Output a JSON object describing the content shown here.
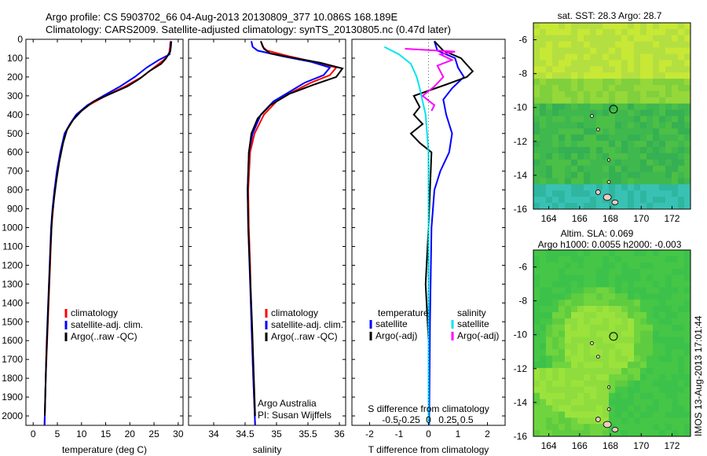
{
  "header": {
    "line1": "Argo profile: CS 5903702_66 04-Aug-2013 20130809_377 10.086S 168.189E",
    "line2": "Climatology: CARS2009. Satellite-adjusted climatology: synTS_20130805.nc (0.47d later)"
  },
  "colors": {
    "climatology": "#ff0000",
    "satellite": "#0000ff",
    "argo": "#000000",
    "sat_salinity": "#00e5ee",
    "argo_salinity": "#ff00ff"
  },
  "chart_data": [
    {
      "type": "line",
      "id": "temperature",
      "xlabel": "temperature (deg C)",
      "ylabel": "",
      "xlim": [
        -1.5,
        31
      ],
      "ylim": [
        0,
        2050
      ],
      "y_reversed": true,
      "xticks": [
        0,
        5,
        10,
        15,
        20,
        25,
        30
      ],
      "yticks": [
        0,
        100,
        200,
        300,
        400,
        500,
        600,
        700,
        800,
        900,
        1000,
        1100,
        1200,
        1300,
        1400,
        1500,
        1600,
        1700,
        1800,
        1900,
        2000
      ],
      "legend": [
        "climatology",
        "satellite-adj. clim.",
        "Argo(..raw -QC)"
      ],
      "series": [
        {
          "name": "climatology",
          "color": "#ff0000",
          "points": [
            [
              28.4,
              10
            ],
            [
              28.3,
              40
            ],
            [
              28.1,
              80
            ],
            [
              27.0,
              110
            ],
            [
              25.0,
              150
            ],
            [
              22.5,
              200
            ],
            [
              19.0,
              250
            ],
            [
              15.0,
              300
            ],
            [
              11.5,
              350
            ],
            [
              9.0,
              400
            ],
            [
              7.7,
              450
            ],
            [
              6.6,
              500
            ],
            [
              5.7,
              600
            ],
            [
              5.0,
              700
            ],
            [
              4.5,
              800
            ],
            [
              4.1,
              900
            ],
            [
              3.8,
              1000
            ],
            [
              3.5,
              1200
            ],
            [
              3.2,
              1400
            ],
            [
              2.9,
              1600
            ],
            [
              2.6,
              1800
            ],
            [
              2.4,
              2000
            ],
            [
              2.35,
              2050
            ]
          ]
        },
        {
          "name": "satellite-adj. clim.",
          "color": "#0000ff",
          "points": [
            [
              28.6,
              10
            ],
            [
              28.5,
              40
            ],
            [
              28.2,
              80
            ],
            [
              26.0,
              110
            ],
            [
              23.5,
              150
            ],
            [
              21.0,
              200
            ],
            [
              18.0,
              250
            ],
            [
              14.5,
              300
            ],
            [
              11.2,
              350
            ],
            [
              8.9,
              400
            ],
            [
              7.6,
              450
            ],
            [
              6.5,
              500
            ],
            [
              5.6,
              600
            ],
            [
              4.9,
              700
            ],
            [
              4.4,
              800
            ],
            [
              4.0,
              900
            ],
            [
              3.7,
              1000
            ],
            [
              3.4,
              1200
            ],
            [
              3.1,
              1400
            ],
            [
              2.8,
              1600
            ],
            [
              2.6,
              1800
            ],
            [
              2.4,
              2000
            ],
            [
              2.35,
              2050
            ]
          ]
        },
        {
          "name": "Argo(..raw -QC)",
          "color": "#000000",
          "points": [
            [
              28.5,
              10
            ],
            [
              28.4,
              60
            ],
            [
              27.5,
              100
            ],
            [
              26.5,
              130
            ],
            [
              24.0,
              170
            ],
            [
              22.0,
              210
            ],
            [
              19.5,
              250
            ],
            [
              15.5,
              295
            ],
            [
              12.5,
              330
            ],
            [
              10.0,
              380
            ],
            [
              8.2,
              430
            ],
            [
              7.0,
              480
            ],
            [
              6.2,
              550
            ],
            [
              5.4,
              650
            ],
            [
              4.8,
              750
            ],
            [
              4.3,
              850
            ],
            [
              3.9,
              950
            ],
            [
              3.6,
              1100
            ],
            [
              3.3,
              1300
            ],
            [
              3.0,
              1500
            ],
            [
              2.7,
              1700
            ],
            [
              2.5,
              1900
            ],
            [
              2.4,
              2000
            ]
          ]
        }
      ]
    },
    {
      "type": "line",
      "id": "salinity",
      "xlabel": "salinity",
      "xlim": [
        33.6,
        36.1
      ],
      "ylim": [
        0,
        2050
      ],
      "y_reversed": true,
      "xticks": [
        34,
        34.5,
        35,
        35.5,
        36
      ],
      "legend": [
        "climatology",
        "satellite-adj. clim.",
        "Argo(..raw -QC)"
      ],
      "annotation": [
        "Argo Australia",
        "PI: Susan Wijffels"
      ],
      "series": [
        {
          "name": "climatology",
          "color": "#ff0000",
          "points": [
            [
              34.75,
              10
            ],
            [
              34.78,
              40
            ],
            [
              34.85,
              60
            ],
            [
              35.2,
              90
            ],
            [
              35.6,
              120
            ],
            [
              35.95,
              150
            ],
            [
              35.85,
              190
            ],
            [
              35.55,
              230
            ],
            [
              35.25,
              280
            ],
            [
              35.0,
              330
            ],
            [
              34.8,
              400
            ],
            [
              34.65,
              500
            ],
            [
              34.58,
              600
            ],
            [
              34.55,
              800
            ],
            [
              34.56,
              1000
            ],
            [
              34.58,
              1200
            ],
            [
              34.6,
              1500
            ],
            [
              34.63,
              1800
            ],
            [
              34.66,
              2050
            ]
          ]
        },
        {
          "name": "satellite-adj. clim.",
          "color": "#0000ff",
          "points": [
            [
              34.6,
              10
            ],
            [
              34.62,
              40
            ],
            [
              34.7,
              60
            ],
            [
              35.1,
              90
            ],
            [
              35.55,
              120
            ],
            [
              35.85,
              150
            ],
            [
              35.75,
              190
            ],
            [
              35.45,
              230
            ],
            [
              35.2,
              280
            ],
            [
              34.95,
              330
            ],
            [
              34.75,
              400
            ],
            [
              34.62,
              500
            ],
            [
              34.56,
              600
            ],
            [
              34.54,
              800
            ],
            [
              34.55,
              1000
            ],
            [
              34.57,
              1200
            ],
            [
              34.6,
              1500
            ],
            [
              34.63,
              1800
            ],
            [
              34.66,
              2050
            ]
          ]
        },
        {
          "name": "Argo(..raw -QC)",
          "color": "#000000",
          "points": [
            [
              34.75,
              10
            ],
            [
              34.8,
              50
            ],
            [
              34.9,
              75
            ],
            [
              35.3,
              100
            ],
            [
              35.7,
              125
            ],
            [
              36.05,
              155
            ],
            [
              35.95,
              200
            ],
            [
              35.6,
              240
            ],
            [
              35.2,
              290
            ],
            [
              34.9,
              350
            ],
            [
              34.7,
              420
            ],
            [
              34.6,
              500
            ],
            [
              34.56,
              600
            ],
            [
              34.54,
              800
            ],
            [
              34.55,
              1000
            ],
            [
              34.58,
              1250
            ],
            [
              34.61,
              1500
            ],
            [
              34.64,
              1800
            ],
            [
              34.66,
              2000
            ]
          ]
        }
      ]
    },
    {
      "type": "line",
      "id": "differences",
      "xlabel": "T difference from climatology",
      "x2label": "S difference from climatology",
      "xlim": [
        -2.6,
        2.6
      ],
      "ylim": [
        0,
        2050
      ],
      "y_reversed": true,
      "xticks": [
        "-2",
        "-1",
        "0",
        "1",
        "2"
      ],
      "x2ticks": [
        "-0.5",
        "-0.25",
        "0",
        "0.25",
        "0.5"
      ],
      "legend_groups": [
        {
          "title": "temperature",
          "entries": [
            "satellite",
            "Argo(-adj)"
          ]
        },
        {
          "title": "salinity",
          "entries": [
            "satellite",
            "Argo(-adj)"
          ]
        }
      ],
      "series": [
        {
          "name": "temperature satellite",
          "color": "#0000ff",
          "points": [
            [
              0.2,
              10
            ],
            [
              0.3,
              60
            ],
            [
              0.9,
              100
            ],
            [
              1.0,
              150
            ],
            [
              1.2,
              200
            ],
            [
              0.8,
              260
            ],
            [
              0.5,
              320
            ],
            [
              0.6,
              400
            ],
            [
              0.8,
              500
            ],
            [
              0.7,
              600
            ],
            [
              0.4,
              700
            ],
            [
              0.2,
              800
            ],
            [
              0.1,
              1000
            ],
            [
              0.05,
              1500
            ],
            [
              0.02,
              2050
            ]
          ]
        },
        {
          "name": "temperature Argo(-adj)",
          "color": "#000000",
          "points": [
            [
              0.2,
              10
            ],
            [
              0.5,
              60
            ],
            [
              1.1,
              100
            ],
            [
              1.5,
              170
            ],
            [
              1.3,
              200
            ],
            [
              0.6,
              240
            ],
            [
              -0.5,
              300
            ],
            [
              -0.3,
              360
            ],
            [
              -0.5,
              400
            ],
            [
              -0.2,
              450
            ],
            [
              -0.6,
              500
            ],
            [
              -0.3,
              550
            ],
            [
              0.1,
              600
            ],
            [
              0.05,
              800
            ],
            [
              0.0,
              1000
            ],
            [
              -0.1,
              1300
            ],
            [
              0.0,
              1600
            ],
            [
              0.0,
              2000
            ]
          ]
        },
        {
          "name": "salinity satellite",
          "color": "#00e5ee",
          "points": [
            [
              -1.5,
              40
            ],
            [
              -1.0,
              80
            ],
            [
              -0.6,
              130
            ],
            [
              -0.4,
              200
            ],
            [
              -0.3,
              260
            ],
            [
              -0.2,
              330
            ],
            [
              -0.1,
              400
            ],
            [
              0.0,
              600
            ],
            [
              0.0,
              1000
            ],
            [
              0.0,
              1500
            ],
            [
              0.0,
              2050
            ]
          ]
        },
        {
          "name": "salinity Argo(-adj)",
          "color": "#ff00ff",
          "points": [
            [
              -0.8,
              50
            ],
            [
              0.9,
              65
            ],
            [
              0.4,
              80
            ],
            [
              0.8,
              110
            ],
            [
              0.3,
              140
            ],
            [
              0.5,
              200
            ],
            [
              0.2,
              250
            ],
            [
              -0.2,
              300
            ],
            [
              0.2,
              350
            ],
            [
              0.1,
              380
            ]
          ]
        }
      ]
    },
    {
      "type": "heatmap",
      "id": "sst-map",
      "title": "sat. SST: 28.3 Argo: 28.7",
      "xlim": [
        163,
        173.2
      ],
      "ylim": [
        -16,
        -5
      ],
      "xticks": [
        164,
        166,
        168,
        170,
        172
      ],
      "yticks": [
        -6,
        -8,
        -10,
        -12,
        -14,
        -16
      ],
      "marker": {
        "lon": 168.2,
        "lat": -10.1
      }
    },
    {
      "type": "heatmap",
      "id": "sla-map",
      "title": "Altim. SLA: 0.069",
      "subtitle": "Argo h1000: 0.0055 h2000: -0.003",
      "xlim": [
        163,
        173.2
      ],
      "ylim": [
        -16,
        -5
      ],
      "xticks": [
        164,
        166,
        168,
        170,
        172
      ],
      "yticks": [
        -6,
        -8,
        -10,
        -12,
        -14,
        -16
      ],
      "marker": {
        "lon": 168.2,
        "lat": -10.1
      }
    }
  ],
  "side_note": "IMOS 13-Aug-2013 17:01:44"
}
